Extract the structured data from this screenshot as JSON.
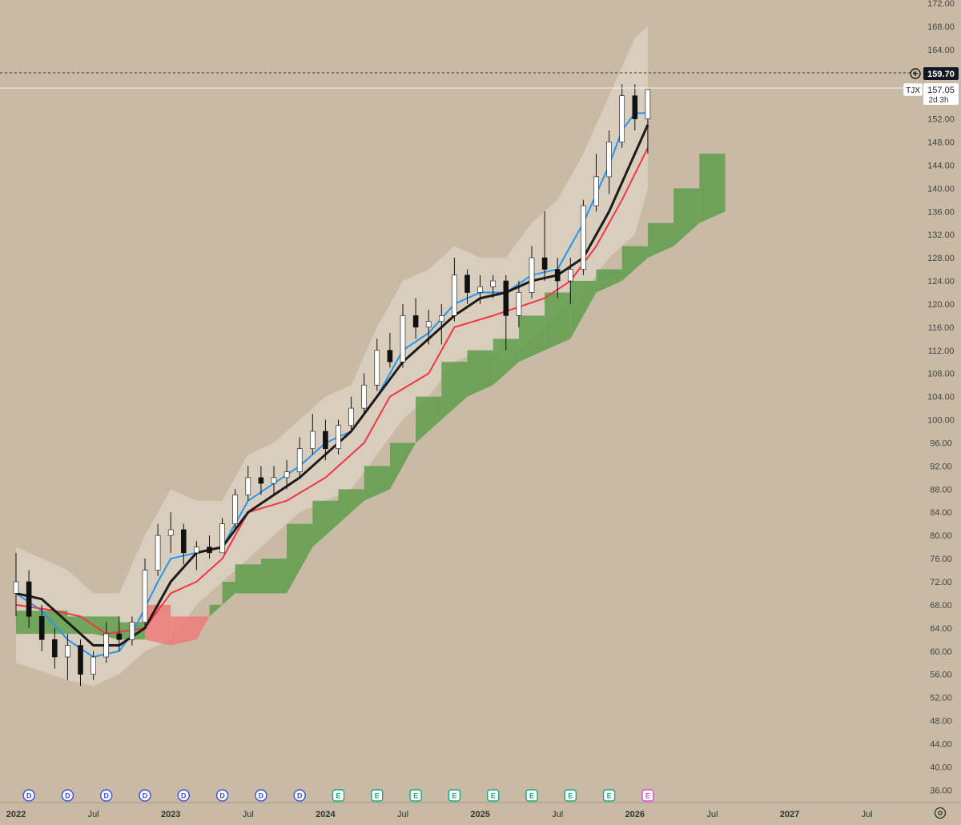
{
  "symbol": "TJX",
  "last_price_label": "157.05",
  "countdown_label": "2d 3h",
  "crosshair_price_label": "159.70",
  "colors": {
    "background": "#c8baa4",
    "conversion_line": "#2196f3",
    "base_line": "#f23645",
    "moving_average": "#1e1b18",
    "cloud_bull": "#5e9e4e",
    "cloud_bear": "#ec7c7a",
    "envelope": "#eee7dd",
    "candle_up": "#ffffff",
    "candle_down": "#111111",
    "dividend_marker": "#3b4fd8",
    "earnings_marker": "#19a97b",
    "earnings_upcoming": "#d94dd9"
  },
  "y_axis": {
    "ticks": [
      "172.00",
      "168.00",
      "164.00",
      "160.00",
      "156.00",
      "152.00",
      "148.00",
      "144.00",
      "140.00",
      "136.00",
      "132.00",
      "128.00",
      "124.00",
      "120.00",
      "116.00",
      "112.00",
      "108.00",
      "104.00",
      "100.00",
      "96.00",
      "92.00",
      "88.00",
      "84.00",
      "80.00",
      "76.00",
      "72.00",
      "68.00",
      "64.00",
      "60.00",
      "56.00",
      "52.00",
      "48.00",
      "44.00",
      "40.00",
      "36.00"
    ]
  },
  "x_axis": {
    "labels": [
      "2022",
      "Jul",
      "2023",
      "Jul",
      "2024",
      "Jul",
      "2025",
      "Jul",
      "2026",
      "Jul",
      "2027",
      "Jul"
    ]
  },
  "event_markers": [
    {
      "letter": "D",
      "type": "dividend"
    },
    {
      "letter": "D",
      "type": "dividend"
    },
    {
      "letter": "D",
      "type": "dividend"
    },
    {
      "letter": "D",
      "type": "dividend"
    },
    {
      "letter": "D",
      "type": "dividend"
    },
    {
      "letter": "D",
      "type": "dividend"
    },
    {
      "letter": "D",
      "type": "dividend"
    },
    {
      "letter": "D",
      "type": "dividend"
    },
    {
      "letter": "E",
      "type": "earnings"
    },
    {
      "letter": "E",
      "type": "earnings"
    },
    {
      "letter": "E",
      "type": "earnings"
    },
    {
      "letter": "E",
      "type": "earnings"
    },
    {
      "letter": "E",
      "type": "earnings"
    },
    {
      "letter": "E",
      "type": "earnings"
    },
    {
      "letter": "E",
      "type": "earnings"
    },
    {
      "letter": "E",
      "type": "earnings"
    },
    {
      "letter": "E",
      "type": "earnings_upcoming"
    }
  ],
  "chart_data": {
    "type": "line",
    "y_scale": "linear",
    "ylim": [
      34,
      174
    ],
    "xlim": [
      "2022-01",
      "2027-09"
    ],
    "grid": false,
    "crosshair_price": 159.7,
    "last_price": 157.05,
    "price_ohlc": [
      {
        "t": "2022-01",
        "o": 70,
        "h": 77,
        "l": 66,
        "c": 72
      },
      {
        "t": "2022-02",
        "o": 72,
        "h": 74,
        "l": 64,
        "c": 66
      },
      {
        "t": "2022-03",
        "o": 66,
        "h": 68,
        "l": 60,
        "c": 62
      },
      {
        "t": "2022-04",
        "o": 62,
        "h": 64,
        "l": 57,
        "c": 59
      },
      {
        "t": "2022-05",
        "o": 59,
        "h": 63,
        "l": 55,
        "c": 61
      },
      {
        "t": "2022-06",
        "o": 61,
        "h": 62,
        "l": 54,
        "c": 56
      },
      {
        "t": "2022-07",
        "o": 56,
        "h": 60,
        "l": 55,
        "c": 59
      },
      {
        "t": "2022-08",
        "o": 59,
        "h": 65,
        "l": 58,
        "c": 63
      },
      {
        "t": "2022-09",
        "o": 63,
        "h": 66,
        "l": 60,
        "c": 62
      },
      {
        "t": "2022-10",
        "o": 62,
        "h": 66,
        "l": 61,
        "c": 65
      },
      {
        "t": "2022-11",
        "o": 65,
        "h": 76,
        "l": 64,
        "c": 74
      },
      {
        "t": "2022-12",
        "o": 74,
        "h": 82,
        "l": 73,
        "c": 80
      },
      {
        "t": "2023-01",
        "o": 80,
        "h": 84,
        "l": 77,
        "c": 81
      },
      {
        "t": "2023-02",
        "o": 81,
        "h": 82,
        "l": 75,
        "c": 77
      },
      {
        "t": "2023-03",
        "o": 77,
        "h": 79,
        "l": 74,
        "c": 78
      },
      {
        "t": "2023-04",
        "o": 78,
        "h": 80,
        "l": 76,
        "c": 77
      },
      {
        "t": "2023-05",
        "o": 77,
        "h": 83,
        "l": 77,
        "c": 82
      },
      {
        "t": "2023-06",
        "o": 82,
        "h": 88,
        "l": 81,
        "c": 87
      },
      {
        "t": "2023-07",
        "o": 87,
        "h": 92,
        "l": 86,
        "c": 90
      },
      {
        "t": "2023-08",
        "o": 90,
        "h": 92,
        "l": 87,
        "c": 89
      },
      {
        "t": "2023-09",
        "o": 89,
        "h": 92,
        "l": 87,
        "c": 90
      },
      {
        "t": "2023-10",
        "o": 90,
        "h": 93,
        "l": 88,
        "c": 91
      },
      {
        "t": "2023-11",
        "o": 91,
        "h": 97,
        "l": 90,
        "c": 95
      },
      {
        "t": "2023-12",
        "o": 95,
        "h": 101,
        "l": 94,
        "c": 98
      },
      {
        "t": "2024-01",
        "o": 98,
        "h": 100,
        "l": 93,
        "c": 95
      },
      {
        "t": "2024-02",
        "o": 95,
        "h": 100,
        "l": 94,
        "c": 99
      },
      {
        "t": "2024-03",
        "o": 99,
        "h": 104,
        "l": 98,
        "c": 102
      },
      {
        "t": "2024-04",
        "o": 102,
        "h": 108,
        "l": 101,
        "c": 106
      },
      {
        "t": "2024-05",
        "o": 106,
        "h": 114,
        "l": 105,
        "c": 112
      },
      {
        "t": "2024-06",
        "o": 112,
        "h": 115,
        "l": 109,
        "c": 110
      },
      {
        "t": "2024-07",
        "o": 110,
        "h": 120,
        "l": 109,
        "c": 118
      },
      {
        "t": "2024-08",
        "o": 118,
        "h": 121,
        "l": 114,
        "c": 116
      },
      {
        "t": "2024-09",
        "o": 116,
        "h": 119,
        "l": 113,
        "c": 117
      },
      {
        "t": "2024-10",
        "o": 117,
        "h": 120,
        "l": 113,
        "c": 118
      },
      {
        "t": "2024-11",
        "o": 118,
        "h": 128,
        "l": 117,
        "c": 125
      },
      {
        "t": "2024-12",
        "o": 125,
        "h": 126,
        "l": 120,
        "c": 122
      },
      {
        "t": "2025-01",
        "o": 122,
        "h": 125,
        "l": 120,
        "c": 123
      },
      {
        "t": "2025-02",
        "o": 123,
        "h": 125,
        "l": 121,
        "c": 124
      },
      {
        "t": "2025-03",
        "o": 124,
        "h": 125,
        "l": 112,
        "c": 118
      },
      {
        "t": "2025-04",
        "o": 118,
        "h": 124,
        "l": 116,
        "c": 122
      },
      {
        "t": "2025-05",
        "o": 122,
        "h": 130,
        "l": 121,
        "c": 128
      },
      {
        "t": "2025-06",
        "o": 128,
        "h": 136,
        "l": 124,
        "c": 126
      },
      {
        "t": "2025-07",
        "o": 126,
        "h": 128,
        "l": 121,
        "c": 124
      },
      {
        "t": "2025-08",
        "o": 124,
        "h": 128,
        "l": 120,
        "c": 126
      },
      {
        "t": "2025-09",
        "o": 126,
        "h": 138,
        "l": 125,
        "c": 137
      },
      {
        "t": "2025-10",
        "o": 137,
        "h": 146,
        "l": 136,
        "c": 142
      },
      {
        "t": "2025-11",
        "o": 142,
        "h": 150,
        "l": 139,
        "c": 148
      },
      {
        "t": "2025-12",
        "o": 148,
        "h": 158,
        "l": 147,
        "c": 156
      },
      {
        "t": "2026-01",
        "o": 156,
        "h": 158,
        "l": 150,
        "c": 152
      },
      {
        "t": "2026-02",
        "o": 152,
        "h": 157,
        "l": 146,
        "c": 157.05
      }
    ],
    "series": [
      {
        "key": "conversion_line",
        "points": [
          [
            "2022-01",
            70
          ],
          [
            "2022-03",
            67
          ],
          [
            "2022-05",
            62
          ],
          [
            "2022-07",
            59
          ],
          [
            "2022-09",
            60
          ],
          [
            "2022-10",
            63
          ],
          [
            "2022-12",
            72
          ],
          [
            "2023-01",
            76
          ],
          [
            "2023-03",
            77
          ],
          [
            "2023-05",
            78
          ],
          [
            "2023-07",
            86
          ],
          [
            "2023-09",
            89
          ],
          [
            "2023-11",
            92
          ],
          [
            "2024-01",
            96
          ],
          [
            "2024-03",
            98
          ],
          [
            "2024-05",
            104
          ],
          [
            "2024-07",
            112
          ],
          [
            "2024-09",
            115
          ],
          [
            "2024-11",
            120
          ],
          [
            "2025-01",
            122
          ],
          [
            "2025-03",
            122
          ],
          [
            "2025-05",
            125
          ],
          [
            "2025-07",
            126
          ],
          [
            "2025-09",
            134
          ],
          [
            "2025-11",
            144
          ],
          [
            "2025-12",
            150
          ],
          [
            "2026-01",
            153
          ],
          [
            "2026-02",
            153
          ]
        ]
      },
      {
        "key": "base_line",
        "points": [
          [
            "2022-01",
            68
          ],
          [
            "2022-04",
            67
          ],
          [
            "2022-06",
            66
          ],
          [
            "2022-08",
            63
          ],
          [
            "2022-11",
            64
          ],
          [
            "2023-01",
            70
          ],
          [
            "2023-03",
            72
          ],
          [
            "2023-05",
            76
          ],
          [
            "2023-07",
            84
          ],
          [
            "2023-10",
            86
          ],
          [
            "2024-01",
            90
          ],
          [
            "2024-04",
            96
          ],
          [
            "2024-06",
            104
          ],
          [
            "2024-09",
            108
          ],
          [
            "2024-11",
            116
          ],
          [
            "2025-02",
            118
          ],
          [
            "2025-06",
            121
          ],
          [
            "2025-08",
            124
          ],
          [
            "2025-10",
            130
          ],
          [
            "2025-12",
            138
          ],
          [
            "2026-02",
            147
          ]
        ]
      },
      {
        "key": "moving_average",
        "points": [
          [
            "2022-01",
            70
          ],
          [
            "2022-03",
            69
          ],
          [
            "2022-05",
            65
          ],
          [
            "2022-07",
            61
          ],
          [
            "2022-09",
            61
          ],
          [
            "2022-11",
            64
          ],
          [
            "2023-01",
            72
          ],
          [
            "2023-03",
            77
          ],
          [
            "2023-05",
            78
          ],
          [
            "2023-07",
            84
          ],
          [
            "2023-09",
            87
          ],
          [
            "2023-11",
            90
          ],
          [
            "2024-01",
            94
          ],
          [
            "2024-03",
            98
          ],
          [
            "2024-05",
            104
          ],
          [
            "2024-07",
            110
          ],
          [
            "2024-09",
            114
          ],
          [
            "2024-11",
            118
          ],
          [
            "2025-01",
            121
          ],
          [
            "2025-03",
            122
          ],
          [
            "2025-05",
            124
          ],
          [
            "2025-07",
            125
          ],
          [
            "2025-09",
            128
          ],
          [
            "2025-11",
            136
          ],
          [
            "2026-01",
            146
          ],
          [
            "2026-02",
            151
          ]
        ]
      }
    ],
    "cloud": [
      [
        "2022-01",
        67,
        63
      ],
      [
        "2022-05",
        66,
        63
      ],
      [
        "2022-07",
        66,
        63
      ],
      [
        "2022-09",
        65,
        62
      ],
      [
        "2022-11",
        68,
        62
      ],
      [
        "2023-01",
        66,
        61
      ],
      [
        "2023-03",
        66,
        62
      ],
      [
        "2023-04",
        68,
        66
      ],
      [
        "2023-05",
        72,
        68
      ],
      [
        "2023-06",
        75,
        70
      ],
      [
        "2023-08",
        76,
        70
      ],
      [
        "2023-10",
        82,
        70
      ],
      [
        "2023-12",
        86,
        78
      ],
      [
        "2024-02",
        88,
        82
      ],
      [
        "2024-04",
        92,
        86
      ],
      [
        "2024-06",
        96,
        88
      ],
      [
        "2024-08",
        104,
        96
      ],
      [
        "2024-10",
        110,
        100
      ],
      [
        "2024-12",
        112,
        104
      ],
      [
        "2025-02",
        114,
        106
      ],
      [
        "2025-04",
        118,
        110
      ],
      [
        "2025-06",
        122,
        112
      ],
      [
        "2025-08",
        124,
        114
      ],
      [
        "2025-10",
        126,
        122
      ],
      [
        "2025-12",
        130,
        124
      ],
      [
        "2026-02",
        134,
        128
      ],
      [
        "2026-04",
        140,
        130
      ],
      [
        "2026-06",
        146,
        134
      ],
      [
        "2026-08",
        150,
        136
      ]
    ],
    "envelope": [
      [
        "2022-01",
        78,
        58
      ],
      [
        "2022-05",
        74,
        55
      ],
      [
        "2022-07",
        70,
        54
      ],
      [
        "2022-09",
        70,
        56
      ],
      [
        "2022-11",
        80,
        60
      ],
      [
        "2023-01",
        88,
        62
      ],
      [
        "2023-03",
        86,
        68
      ],
      [
        "2023-05",
        86,
        72
      ],
      [
        "2023-07",
        94,
        76
      ],
      [
        "2023-09",
        96,
        80
      ],
      [
        "2023-11",
        100,
        84
      ],
      [
        "2024-01",
        104,
        86
      ],
      [
        "2024-03",
        106,
        88
      ],
      [
        "2024-05",
        116,
        94
      ],
      [
        "2024-07",
        124,
        100
      ],
      [
        "2024-09",
        126,
        104
      ],
      [
        "2024-11",
        130,
        110
      ],
      [
        "2025-01",
        128,
        112
      ],
      [
        "2025-03",
        128,
        110
      ],
      [
        "2025-05",
        134,
        114
      ],
      [
        "2025-07",
        138,
        118
      ],
      [
        "2025-09",
        146,
        122
      ],
      [
        "2025-11",
        156,
        128
      ],
      [
        "2026-01",
        166,
        132
      ],
      [
        "2026-02",
        168,
        140
      ]
    ]
  }
}
